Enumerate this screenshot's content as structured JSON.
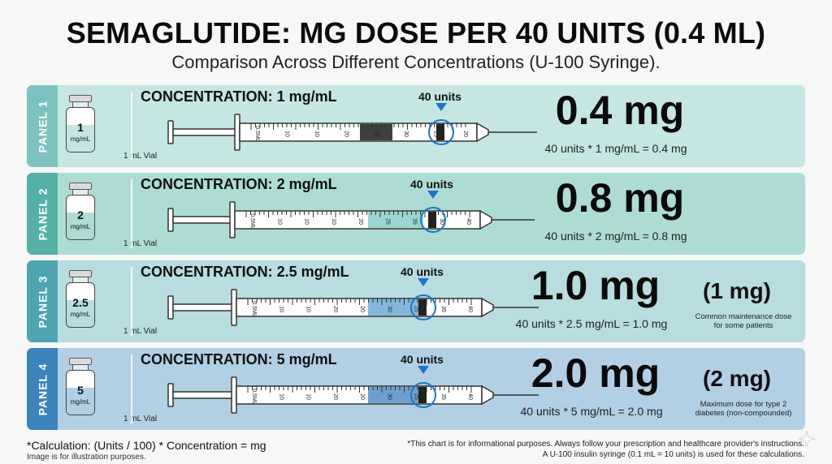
{
  "header": {
    "title": "SEMAGLUTIDE: MG DOSE PER 40 UNITS (0.4 ML)",
    "subtitle": "Comparison Across Different Concentrations (U-100 Syringe)."
  },
  "colors": {
    "panel_backgrounds": [
      "#c5e6e3",
      "#aedcd5",
      "#b8dcdf",
      "#b3cfe3"
    ],
    "tab_colors": [
      "#7cc3bf",
      "#55b0a8",
      "#4ea5b0",
      "#3b83ba"
    ],
    "fill_colors": [
      "#2b2b2b",
      "#79c7c2",
      "#5aa0d0",
      "#3e7fc0"
    ],
    "marker_circle": "#1f74c7"
  },
  "panels": [
    {
      "tab": "PANEL 1",
      "vial_number": "1",
      "vial_unit": "mg/mL",
      "vial_caption": "1 mL Vial",
      "concentration": "CONCENTRATION: 1 mg/mL",
      "marker": "40 units",
      "dose": "0.4 mg",
      "calc": "40 units * 1 mg/mL = 0.4 mg",
      "paren": "",
      "note": "",
      "scale_labels": [
        "0.5ML",
        "10",
        "10",
        "20",
        "35",
        "30",
        "25",
        "20"
      ]
    },
    {
      "tab": "PANEL 2",
      "vial_number": "2",
      "vial_unit": "mg/mL",
      "vial_caption": "1 mL Vial",
      "concentration": "CONCENTRATION: 2 mg/mL",
      "marker": "40 units",
      "dose": "0.8 mg",
      "calc": "40 units * 2 mg/mL = 0.8 mg",
      "paren": "",
      "note": "",
      "scale_labels": [
        "0.5ML",
        "10",
        "10",
        "10",
        "20",
        "25",
        "35",
        "30",
        "40"
      ]
    },
    {
      "tab": "PANEL 3",
      "vial_number": "2.5",
      "vial_unit": "mg/mL",
      "vial_caption": "1 mL Vial",
      "concentration": "CONCENTRATION: 2.5 mg/mL",
      "marker": "40 units",
      "dose": "1.0 mg",
      "calc": "40 units * 2.5 mg/mL = 1.0 mg",
      "paren": "(1 mg)",
      "note": "Common maintenance dose for some patients",
      "scale_labels": [
        "0.5ML",
        "10",
        "10",
        "20",
        "20",
        "30",
        "25",
        "35",
        "40"
      ]
    },
    {
      "tab": "PANEL 4",
      "vial_number": "5",
      "vial_unit": "mg/mL",
      "vial_caption": "1 mL Vial",
      "concentration": "CONCENTRATION: 5 mg/mL",
      "marker": "40 units",
      "dose": "2.0 mg",
      "calc": "40 units * 5 mg/mL = 2.0 mg",
      "paren": "(2 mg)",
      "note": "Maximum dose for type 2 diabetes (non-compounded)",
      "scale_labels": [
        "0.5ML",
        "10",
        "10",
        "20",
        "20",
        "30",
        "25",
        "35",
        "40"
      ]
    }
  ],
  "footer": {
    "formula": "*Calculation: (Units / 100) * Concentration = mg",
    "illustration": "Image is for illustration purposes.",
    "disclaimer_1": "*This chart is for informational purposes. Always follow your prescription and healthcare provider's instructions.",
    "disclaimer_2": "A U-100 insulin syringe (0.1 mL = 10 units) is used for these calculations."
  }
}
